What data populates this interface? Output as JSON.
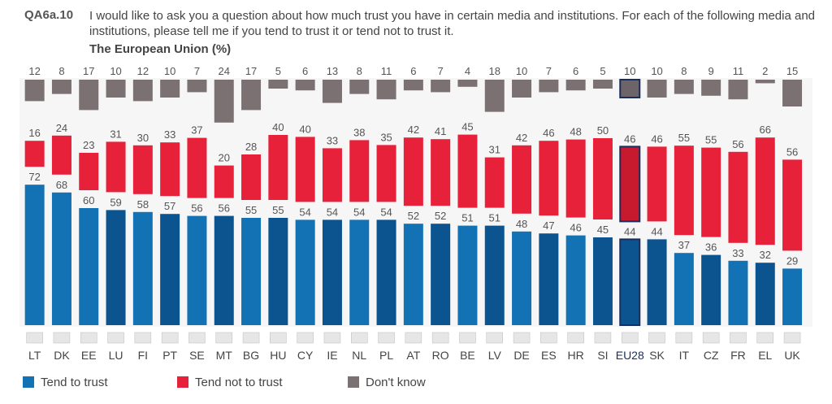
{
  "header": {
    "code": "QA6a.10",
    "question": "I would like to ask you a question about how much trust you have in certain media and institutions. For each of the following media and institutions, please tell me if you tend to trust it or tend not to trust it.",
    "subtitle": "The European Union  (%)"
  },
  "colors": {
    "trust": "#1272b4",
    "trust_dark": "#0c5490",
    "not_trust": "#e8213a",
    "dont_know": "#7b7173",
    "highlight_border": "#1b2d5c"
  },
  "chart_data": {
    "type": "bar",
    "stacked": true,
    "highlight_category": "EU28",
    "categories": [
      "LT",
      "DK",
      "EE",
      "LU",
      "FI",
      "PT",
      "SE",
      "MT",
      "BG",
      "HU",
      "CY",
      "IE",
      "NL",
      "PL",
      "AT",
      "RO",
      "BE",
      "LV",
      "DE",
      "ES",
      "HR",
      "SI",
      "EU28",
      "SK",
      "IT",
      "CZ",
      "FR",
      "EL",
      "UK"
    ],
    "series": [
      {
        "name": "Tend to trust",
        "values": [
          72,
          68,
          60,
          59,
          58,
          57,
          56,
          56,
          55,
          55,
          54,
          54,
          54,
          54,
          52,
          52,
          51,
          51,
          48,
          47,
          46,
          45,
          44,
          44,
          37,
          36,
          33,
          32,
          29
        ]
      },
      {
        "name": "Tend not to trust",
        "values": [
          16,
          24,
          23,
          31,
          30,
          33,
          37,
          20,
          28,
          40,
          40,
          33,
          38,
          35,
          42,
          41,
          45,
          31,
          42,
          46,
          48,
          50,
          46,
          46,
          55,
          55,
          56,
          66,
          56
        ]
      },
      {
        "name": "Don't know",
        "values": [
          12,
          8,
          17,
          10,
          12,
          10,
          7,
          24,
          17,
          5,
          6,
          13,
          8,
          11,
          6,
          7,
          4,
          18,
          10,
          7,
          6,
          5,
          10,
          10,
          8,
          9,
          11,
          2,
          15
        ]
      }
    ],
    "legend_position": "bottom-left"
  },
  "legend": [
    {
      "label": "Tend to trust"
    },
    {
      "label": "Tend not to trust"
    },
    {
      "label": "Don't know"
    }
  ]
}
